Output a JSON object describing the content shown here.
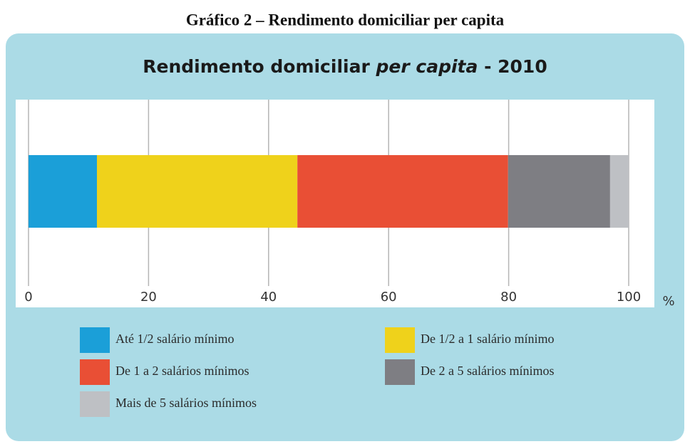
{
  "caption": "Gráfico 2 – Rendimento domiciliar per capita",
  "chart_data": {
    "type": "bar",
    "orientation": "horizontal",
    "stacked": true,
    "title_parts": [
      "Rendimento domiciliar ",
      "per capita",
      " - 2010"
    ],
    "categories": [
      null
    ],
    "series": [
      {
        "name": "Até 1/2 salário mínimo",
        "color": "#1b9fd8",
        "values": [
          11.4
        ]
      },
      {
        "name": "De 1/2 a 1 salário mínimo",
        "color": "#efd21b",
        "values": [
          33.4
        ]
      },
      {
        "name": "De 1 a 2 salários mínimos",
        "color": "#e94f35",
        "values": [
          35.1
        ]
      },
      {
        "name": "De 2 a 5 salários mínimos",
        "color": "#7e7e83",
        "values": [
          17.0
        ]
      },
      {
        "name": "Mais de 5 salários mínimos",
        "color": "#bec0c4",
        "values": [
          3.1
        ]
      }
    ],
    "xlim": [
      0,
      100
    ],
    "xticks": [
      0,
      20,
      40,
      60,
      80,
      100
    ],
    "xlabel": "%",
    "grid": true
  }
}
